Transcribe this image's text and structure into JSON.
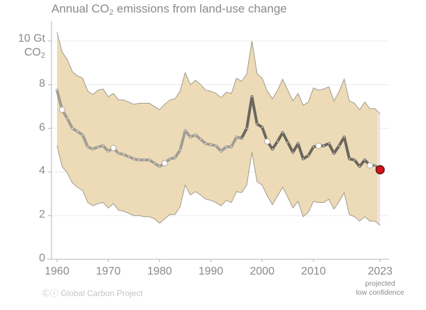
{
  "chart_data": {
    "type": "area",
    "title_prefix": "Annual CO",
    "title_sub": "2",
    "title_suffix": " emissions from land-use change",
    "ylabel_line1": "10 Gt",
    "ylabel_line2_prefix": "CO",
    "ylabel_line2_sub": "2",
    "ylim": [
      0,
      10
    ],
    "xlim": [
      1960,
      2023
    ],
    "y_ticks": [
      {
        "value": 0,
        "label": "0"
      },
      {
        "value": 2,
        "label": "2"
      },
      {
        "value": 4,
        "label": "4"
      },
      {
        "value": 6,
        "label": "6"
      },
      {
        "value": 8,
        "label": "8"
      },
      {
        "value": 10,
        "label": ""
      }
    ],
    "x_ticks": [
      {
        "value": 1960,
        "label": "1960"
      },
      {
        "value": 1970,
        "label": "1970"
      },
      {
        "value": 1980,
        "label": "1980"
      },
      {
        "value": 1990,
        "label": "1990"
      },
      {
        "value": 2000,
        "label": "2000"
      },
      {
        "value": 2010,
        "label": "2010"
      },
      {
        "value": 2023,
        "label": "2023"
      }
    ],
    "projection_note": [
      "projected",
      "low confidence"
    ],
    "grid": true,
    "years": [
      1960,
      1961,
      1962,
      1963,
      1964,
      1965,
      1966,
      1967,
      1968,
      1969,
      1970,
      1971,
      1972,
      1973,
      1974,
      1975,
      1976,
      1977,
      1978,
      1979,
      1980,
      1981,
      1982,
      1983,
      1984,
      1985,
      1986,
      1987,
      1988,
      1989,
      1990,
      1991,
      1992,
      1993,
      1994,
      1995,
      1996,
      1997,
      1998,
      1999,
      2000,
      2001,
      2002,
      2003,
      2004,
      2005,
      2006,
      2007,
      2008,
      2009,
      2010,
      2011,
      2012,
      2013,
      2014,
      2015,
      2016,
      2017,
      2018,
      2019,
      2020,
      2021,
      2022,
      2023
    ],
    "series": [
      {
        "name": "Land-use change emissions (central estimate)",
        "values": [
          7.75,
          6.85,
          6.45,
          6.0,
          5.85,
          5.7,
          5.15,
          5.05,
          5.15,
          5.2,
          4.95,
          5.1,
          4.85,
          4.8,
          4.7,
          4.6,
          4.55,
          4.55,
          4.55,
          4.4,
          4.25,
          4.4,
          4.6,
          4.65,
          5.0,
          5.9,
          5.6,
          5.7,
          5.5,
          5.3,
          5.25,
          5.2,
          4.95,
          5.15,
          5.15,
          5.6,
          5.55,
          6.0,
          7.45,
          6.2,
          6.05,
          5.4,
          5.05,
          5.4,
          5.8,
          5.35,
          4.9,
          5.3,
          4.6,
          4.75,
          5.15,
          5.2,
          5.2,
          5.3,
          4.85,
          5.2,
          5.6,
          4.6,
          4.55,
          4.25,
          4.55,
          4.3,
          4.3,
          4.1
        ]
      },
      {
        "name": "Uncertainty range upper bound",
        "values": [
          10.4,
          9.5,
          9.15,
          8.6,
          8.4,
          8.3,
          7.7,
          7.55,
          7.75,
          7.8,
          7.45,
          7.6,
          7.3,
          7.3,
          7.2,
          7.1,
          7.15,
          7.15,
          7.15,
          7.0,
          6.85,
          7.1,
          7.3,
          7.35,
          7.7,
          8.55,
          8.0,
          8.2,
          8.0,
          7.75,
          7.7,
          7.6,
          7.4,
          7.65,
          7.6,
          8.3,
          8.15,
          8.5,
          10.0,
          8.5,
          8.3,
          7.7,
          7.35,
          7.75,
          8.25,
          7.75,
          7.25,
          7.6,
          7.05,
          7.2,
          7.85,
          7.75,
          7.8,
          7.9,
          7.25,
          7.7,
          8.25,
          7.25,
          7.15,
          6.85,
          7.2,
          6.9,
          6.9,
          6.65
        ]
      },
      {
        "name": "Uncertainty range lower bound",
        "values": [
          5.2,
          4.25,
          3.95,
          3.5,
          3.3,
          3.15,
          2.6,
          2.45,
          2.55,
          2.6,
          2.35,
          2.55,
          2.25,
          2.2,
          2.1,
          2.0,
          2.0,
          1.95,
          1.95,
          1.85,
          1.65,
          1.85,
          2.05,
          2.05,
          2.4,
          3.4,
          2.95,
          3.1,
          2.95,
          2.75,
          2.7,
          2.6,
          2.45,
          2.7,
          2.6,
          3.1,
          3.05,
          3.4,
          4.9,
          3.55,
          3.4,
          2.9,
          2.5,
          2.9,
          3.3,
          2.85,
          2.35,
          2.65,
          1.95,
          2.15,
          2.65,
          2.6,
          2.6,
          2.75,
          2.3,
          2.65,
          3.05,
          2.05,
          1.95,
          1.75,
          1.95,
          1.75,
          1.75,
          1.55
        ]
      }
    ],
    "highlighted_points": [
      1961,
      1971,
      1981,
      2001,
      2011,
      2021
    ],
    "projected_point": {
      "year": 2023,
      "value": 4.1
    },
    "colors": {
      "band": "#ecdbb6",
      "band_edge": "#a09a8e",
      "projection_band": "#f1e2e0",
      "line_early": "#a29c93",
      "line_late": "#6b665e",
      "projected_point": "#d0121b",
      "grid": "#ececec",
      "axis": "#b5b5b5",
      "text": "#8a8a8a"
    }
  },
  "credit": "Ⓒⓘ Global Carbon Project"
}
